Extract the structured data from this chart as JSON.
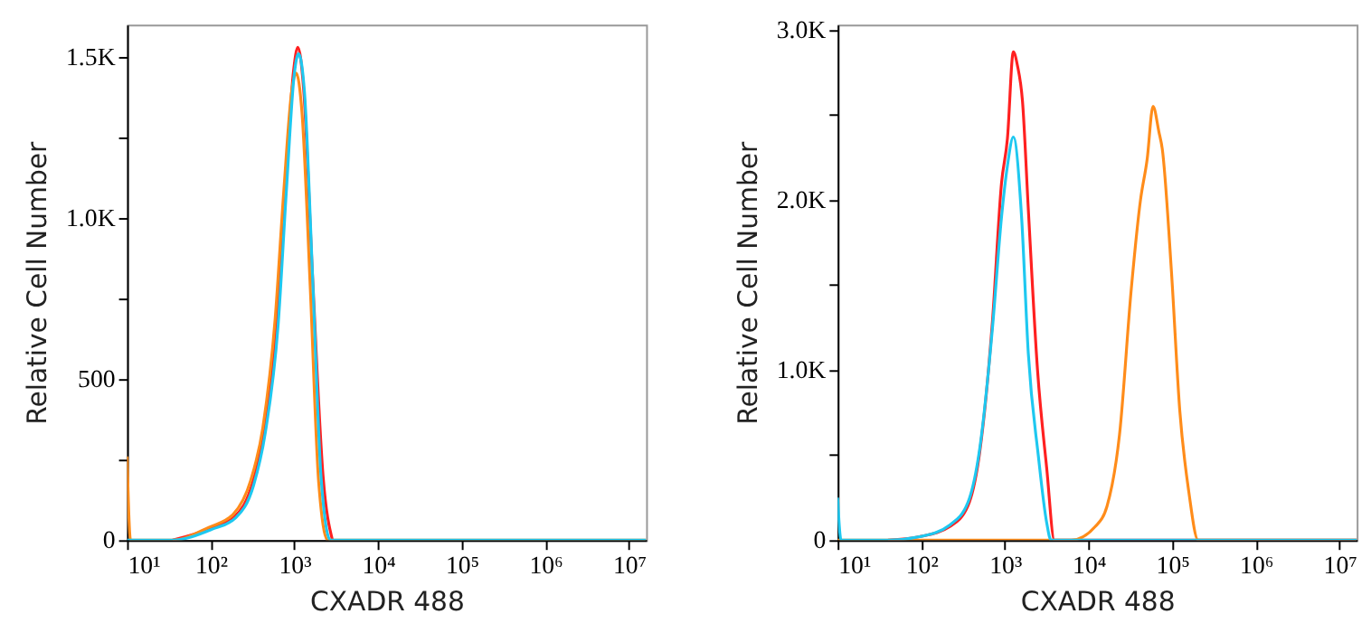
{
  "chart_data": [
    {
      "type": "line",
      "xlabel": "CXADR 488",
      "ylabel": "Relative Cell Number",
      "log": "x",
      "grid": false,
      "xlim": [
        10,
        16000000
      ],
      "ylim": [
        0,
        1600
      ],
      "xticks": [
        {
          "value": 10,
          "label": "10¹"
        },
        {
          "value": 100,
          "label": "10²"
        },
        {
          "value": 1000,
          "label": "10³"
        },
        {
          "value": 10000,
          "label": "10⁴"
        },
        {
          "value": 100000,
          "label": "10⁵"
        },
        {
          "value": 1000000,
          "label": "10⁶"
        },
        {
          "value": 10000000,
          "label": "10⁷"
        }
      ],
      "yticks": [
        {
          "value": 0,
          "label": "0"
        },
        {
          "value": 250,
          "label": null
        },
        {
          "value": 500,
          "label": "500"
        },
        {
          "value": 750,
          "label": null
        },
        {
          "value": 1000,
          "label": "1.0K"
        },
        {
          "value": 1250,
          "label": null
        },
        {
          "value": 1500,
          "label": "1.5K"
        }
      ],
      "series": [
        {
          "color": "#ff2020",
          "x": [
            35,
            100,
            195,
            316,
            440,
            620,
            780,
            980,
            1100,
            1290,
            1640,
            2200,
            2850
          ],
          "values": [
            0,
            37,
            74,
            177,
            345,
            680,
            1087,
            1460,
            1530,
            1400,
            830,
            200,
            0
          ]
        },
        {
          "color": "#ff8c1a",
          "x": [
            10,
            11,
            35,
            95,
            185,
            300,
            420,
            590,
            745,
            935,
            1050,
            1230,
            1550,
            1950,
            2500,
            16000000
          ],
          "values": [
            260,
            0,
            0,
            40,
            80,
            185,
            350,
            690,
            1080,
            1400,
            1450,
            1330,
            780,
            180,
            0,
            0
          ]
        },
        {
          "color": "#1ec8f0",
          "x": [
            10,
            11,
            35,
            102,
            200,
            325,
            450,
            640,
            800,
            1000,
            1120,
            1320,
            1660,
            2090,
            2700,
            16000000
          ],
          "values": [
            0,
            0,
            0,
            33,
            70,
            170,
            335,
            670,
            1080,
            1450,
            1510,
            1390,
            800,
            190,
            0,
            0
          ]
        }
      ]
    },
    {
      "type": "line",
      "xlabel": "CXADR 488",
      "ylabel": "Relative Cell Number",
      "log": "x",
      "grid": false,
      "xlim": [
        10,
        16000000
      ],
      "ylim": [
        0,
        3030
      ],
      "xticks": [
        {
          "value": 10,
          "label": "10¹"
        },
        {
          "value": 100,
          "label": "10²"
        },
        {
          "value": 1000,
          "label": "10³"
        },
        {
          "value": 10000,
          "label": "10⁴"
        },
        {
          "value": 100000,
          "label": "10⁵"
        },
        {
          "value": 1000000,
          "label": "10⁶"
        },
        {
          "value": 10000000,
          "label": "10⁷"
        }
      ],
      "yticks": [
        {
          "value": 0,
          "label": "0"
        },
        {
          "value": 500,
          "label": null
        },
        {
          "value": 1000,
          "label": "1.0K"
        },
        {
          "value": 1500,
          "label": null
        },
        {
          "value": 2000,
          "label": "2.0K"
        },
        {
          "value": 2500,
          "label": null
        },
        {
          "value": 3000,
          "label": "3.0K"
        }
      ],
      "series": [
        {
          "color": "#ff2020",
          "x": [
            40,
            95,
            220,
            360,
            500,
            710,
            910,
            1070,
            1260,
            1410,
            1620,
            1900,
            2450,
            3160,
            3900,
            16000000
          ],
          "values": [
            0,
            20,
            80,
            200,
            520,
            1290,
            2100,
            2360,
            2870,
            2790,
            2580,
            1950,
            1000,
            420,
            0,
            0
          ]
        },
        {
          "color": "#ff8c1a",
          "x": [
            10,
            6200,
            12000,
            16600,
            23400,
            32400,
            41700,
            50100,
            58900,
            69200,
            75900,
            97700,
            123000,
            158000,
            204000,
            16000000
          ],
          "values": [
            0,
            0,
            80,
            200,
            620,
            1480,
            2000,
            2240,
            2550,
            2400,
            2300,
            1580,
            760,
            280,
            0,
            0
          ]
        },
        {
          "color": "#1ec8f0",
          "x": [
            10,
            11,
            40,
            95,
            220,
            360,
            500,
            710,
            910,
            1070,
            1260,
            1580,
            1900,
            2500,
            3160,
            3550,
            16000000
          ],
          "values": [
            250,
            0,
            0,
            20,
            90,
            220,
            540,
            1250,
            1900,
            2200,
            2370,
            1900,
            1100,
            500,
            100,
            0,
            0
          ]
        }
      ]
    }
  ]
}
